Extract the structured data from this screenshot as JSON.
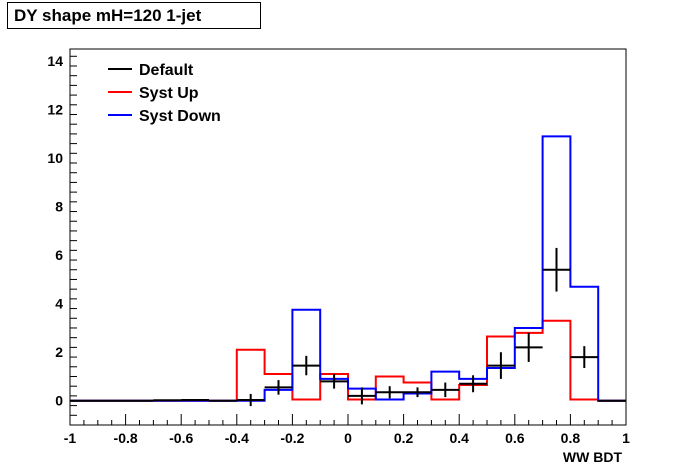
{
  "chart_data": {
    "type": "line",
    "title": "DY shape mH=120 1-jet",
    "xlabel": "WW BDT",
    "ylabel": "",
    "xlim": [
      -1,
      1
    ],
    "ylim": [
      -1,
      14.5
    ],
    "x_ticks": [
      "-1",
      "-0.8",
      "-0.6",
      "-0.4",
      "-0.2",
      "0",
      "0.2",
      "0.4",
      "0.6",
      "0.8",
      "1"
    ],
    "y_ticks": [
      "0",
      "2",
      "4",
      "6",
      "8",
      "10",
      "12",
      "14"
    ],
    "legend_position": "top-left",
    "bin_edges": [
      -1.0,
      -0.9,
      -0.8,
      -0.7,
      -0.6,
      -0.5,
      -0.4,
      -0.3,
      -0.2,
      -0.1,
      0.0,
      0.1,
      0.2,
      0.3,
      0.4,
      0.5,
      0.6,
      0.7,
      0.8,
      0.9,
      1.0
    ],
    "series": [
      {
        "name": "Default",
        "color": "#000000",
        "style": "points-with-errors",
        "values": [
          0.0,
          0.0,
          0.0,
          0.02,
          0.03,
          0.0,
          0.03,
          0.55,
          1.45,
          0.8,
          0.2,
          0.35,
          0.35,
          0.45,
          0.7,
          1.45,
          2.2,
          5.4,
          1.8,
          0.0
        ],
        "errors": [
          0.02,
          0.02,
          0.02,
          0.03,
          0.04,
          0.03,
          0.25,
          0.3,
          0.4,
          0.3,
          0.35,
          0.25,
          0.2,
          0.3,
          0.35,
          0.55,
          0.6,
          0.9,
          0.45,
          0.0
        ]
      },
      {
        "name": "Syst Up",
        "color": "#ff0000",
        "style": "step",
        "values": [
          0.0,
          0.0,
          0.0,
          0.0,
          0.0,
          0.0,
          2.1,
          1.1,
          0.05,
          1.1,
          0.05,
          1.0,
          0.75,
          0.05,
          0.65,
          2.65,
          2.8,
          3.3,
          0.05,
          0.0
        ]
      },
      {
        "name": "Syst Down",
        "color": "#0000ff",
        "style": "step",
        "values": [
          0.0,
          0.0,
          0.0,
          0.0,
          0.0,
          0.0,
          0.0,
          0.45,
          3.75,
          0.9,
          0.5,
          0.05,
          0.3,
          1.2,
          0.9,
          1.35,
          3.0,
          10.9,
          4.7,
          0.0
        ]
      }
    ]
  }
}
